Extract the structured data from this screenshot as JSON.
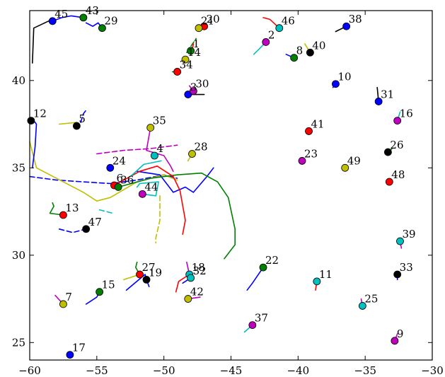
{
  "chart_data": {
    "type": "scatter",
    "title": "",
    "xlabel": "",
    "ylabel": "",
    "xlim": [
      -60,
      -30
    ],
    "ylim": [
      24,
      44
    ],
    "xticks": [
      -60,
      -55,
      -50,
      -45,
      -40,
      -35,
      -30
    ],
    "yticks": [
      25,
      30,
      35,
      40
    ],
    "xtick_labels": [
      "−60",
      "−55",
      "−50",
      "−45",
      "−40",
      "−35",
      "−30"
    ],
    "ytick_labels": [
      "25",
      "30",
      "35",
      "40"
    ],
    "grid": false,
    "legend": "none",
    "colors": {
      "b": "#0000ff",
      "g": "#008000",
      "r": "#ff0000",
      "c": "#00bfbf",
      "m": "#bf00bf",
      "y": "#bfbf00",
      "k": "#000000"
    },
    "points": [
      {
        "id": "1",
        "x": -48.0,
        "y": 41.7,
        "color": "g"
      },
      {
        "id": "2",
        "x": -42.4,
        "y": 42.2,
        "color": "m"
      },
      {
        "id": "3",
        "x": -48.2,
        "y": 39.2,
        "color": "b"
      },
      {
        "id": "4",
        "x": -50.7,
        "y": 35.7,
        "color": "c"
      },
      {
        "id": "5",
        "x": -56.5,
        "y": 37.4,
        "color": "k"
      },
      {
        "id": "6",
        "x": -53.7,
        "y": 34.0,
        "color": "r"
      },
      {
        "id": "7",
        "x": -57.5,
        "y": 27.2,
        "color": "y"
      },
      {
        "id": "8",
        "x": -40.3,
        "y": 41.3,
        "color": "g"
      },
      {
        "id": "9",
        "x": -32.8,
        "y": 25.1,
        "color": "m"
      },
      {
        "id": "10",
        "x": -37.2,
        "y": 39.8,
        "color": "b"
      },
      {
        "id": "11",
        "x": -38.6,
        "y": 28.5,
        "color": "c"
      },
      {
        "id": "12",
        "x": -59.9,
        "y": 37.7,
        "color": "k"
      },
      {
        "id": "13",
        "x": -57.5,
        "y": 32.3,
        "color": "r"
      },
      {
        "id": "14",
        "x": -48.4,
        "y": 41.2,
        "color": "y"
      },
      {
        "id": "15",
        "x": -54.8,
        "y": 27.9,
        "color": "g"
      },
      {
        "id": "16",
        "x": -32.6,
        "y": 37.7,
        "color": "m"
      },
      {
        "id": "17",
        "x": -57.0,
        "y": 24.3,
        "color": "b"
      },
      {
        "id": "18",
        "x": -48.1,
        "y": 28.9,
        "color": "c"
      },
      {
        "id": "19",
        "x": -51.3,
        "y": 28.6,
        "color": "k"
      },
      {
        "id": "20",
        "x": -47.0,
        "y": 43.1,
        "color": "r"
      },
      {
        "id": "21",
        "x": -47.4,
        "y": 43.0,
        "color": "y"
      },
      {
        "id": "22",
        "x": -42.6,
        "y": 29.3,
        "color": "g"
      },
      {
        "id": "23",
        "x": -39.7,
        "y": 35.4,
        "color": "m"
      },
      {
        "id": "24",
        "x": -54.0,
        "y": 35.0,
        "color": "b"
      },
      {
        "id": "25",
        "x": -35.2,
        "y": 27.1,
        "color": "c"
      },
      {
        "id": "26",
        "x": -33.3,
        "y": 35.9,
        "color": "k"
      },
      {
        "id": "27",
        "x": -51.8,
        "y": 28.9,
        "color": "r"
      },
      {
        "id": "28",
        "x": -47.9,
        "y": 35.8,
        "color": "y"
      },
      {
        "id": "29",
        "x": -54.6,
        "y": 43.0,
        "color": "g"
      },
      {
        "id": "30",
        "x": -47.8,
        "y": 39.4,
        "color": "m"
      },
      {
        "id": "31",
        "x": -34.0,
        "y": 38.8,
        "color": "b"
      },
      {
        "id": "32",
        "x": -48.0,
        "y": 28.7,
        "color": "c"
      },
      {
        "id": "33",
        "x": -32.6,
        "y": 28.9,
        "color": "k"
      },
      {
        "id": "34",
        "x": -49.0,
        "y": 40.5,
        "color": "r"
      },
      {
        "id": "35",
        "x": -51.0,
        "y": 37.3,
        "color": "y"
      },
      {
        "id": "36",
        "x": -53.4,
        "y": 33.9,
        "color": "g"
      },
      {
        "id": "37",
        "x": -43.4,
        "y": 26.0,
        "color": "m"
      },
      {
        "id": "38",
        "x": -36.4,
        "y": 43.1,
        "color": "b"
      },
      {
        "id": "39",
        "x": -32.4,
        "y": 30.8,
        "color": "c"
      },
      {
        "id": "40",
        "x": -39.1,
        "y": 41.6,
        "color": "k"
      },
      {
        "id": "41",
        "x": -39.2,
        "y": 37.1,
        "color": "r"
      },
      {
        "id": "42",
        "x": -48.2,
        "y": 27.5,
        "color": "y"
      },
      {
        "id": "43",
        "x": -56.0,
        "y": 43.6,
        "color": "g"
      },
      {
        "id": "44",
        "x": -51.6,
        "y": 33.5,
        "color": "m"
      },
      {
        "id": "45",
        "x": -58.3,
        "y": 43.4,
        "color": "b"
      },
      {
        "id": "46",
        "x": -41.4,
        "y": 43.0,
        "color": "c"
      },
      {
        "id": "47",
        "x": -55.8,
        "y": 31.5,
        "color": "k"
      },
      {
        "id": "48",
        "x": -33.2,
        "y": 34.2,
        "color": "r"
      },
      {
        "id": "49",
        "x": -36.5,
        "y": 35.0,
        "color": "y"
      }
    ],
    "trails": [
      {
        "color": "b",
        "dashed": true,
        "points": [
          [
            -60,
            34.5
          ],
          [
            -58,
            34.3
          ],
          [
            -56,
            34.2
          ],
          [
            -54,
            34.1
          ],
          [
            -52,
            34.3
          ],
          [
            -50,
            34.6
          ],
          [
            -49,
            34.4
          ]
        ]
      },
      {
        "color": "y",
        "dashed": false,
        "points": [
          [
            -60,
            36.5
          ],
          [
            -59.5,
            35
          ],
          [
            -58,
            34.4
          ],
          [
            -56,
            33.6
          ],
          [
            -55,
            33.1
          ],
          [
            -54,
            33.3
          ],
          [
            -52,
            34.2
          ],
          [
            -50,
            34.6
          ],
          [
            -49,
            34.3
          ]
        ]
      },
      {
        "color": "b",
        "dashed": false,
        "points": [
          [
            -59.8,
            37.8
          ],
          [
            -59.5,
            37.5
          ],
          [
            -59.6,
            36.2
          ],
          [
            -59.8,
            35
          ]
        ]
      },
      {
        "color": "b",
        "dashed": false,
        "points": [
          [
            -52,
            34.8
          ],
          [
            -50.3,
            34.6
          ],
          [
            -49.3,
            33.6
          ],
          [
            -48.4,
            33.9
          ],
          [
            -47.8,
            33.6
          ],
          [
            -46.8,
            34.5
          ],
          [
            -46.3,
            35
          ]
        ]
      },
      {
        "color": "g",
        "dashed": false,
        "points": [
          [
            -53.4,
            33.9
          ],
          [
            -51,
            34.4
          ],
          [
            -49,
            34.6
          ],
          [
            -47.2,
            34.7
          ],
          [
            -46,
            34.2
          ],
          [
            -45.2,
            33.3
          ],
          [
            -44.7,
            31.5
          ],
          [
            -44.7,
            30.6
          ],
          [
            -45.5,
            29.8
          ]
        ]
      },
      {
        "color": "r",
        "dashed": false,
        "points": [
          [
            -53.7,
            34.0
          ],
          [
            -51.8,
            34.8
          ],
          [
            -50.5,
            35.1
          ],
          [
            -49.3,
            34.5
          ],
          [
            -48.8,
            33.7
          ],
          [
            -48.4,
            32.0
          ],
          [
            -48.6,
            31.2
          ]
        ]
      },
      {
        "color": "m",
        "dashed": true,
        "points": [
          [
            -55,
            35.8
          ],
          [
            -53,
            36.0
          ],
          [
            -51,
            36.1
          ],
          [
            -49,
            36.3
          ]
        ]
      },
      {
        "color": "y",
        "dashed": true,
        "points": [
          [
            -50.3,
            33.4
          ],
          [
            -50.3,
            32.0
          ],
          [
            -50.6,
            31.0
          ],
          [
            -50.6,
            30.7
          ]
        ]
      },
      {
        "color": "c",
        "dashed": false,
        "points": [
          [
            -51.6,
            33.5
          ],
          [
            -50.6,
            33.4
          ],
          [
            -50.4,
            34.2
          ],
          [
            -51.8,
            34.1
          ],
          [
            -52,
            33.9
          ]
        ]
      },
      {
        "color": "c",
        "dashed": false,
        "points": [
          [
            -52.5,
            34.5
          ],
          [
            -51.5,
            35.2
          ],
          [
            -50.2,
            35.4
          ]
        ]
      },
      {
        "color": "b",
        "dashed": true,
        "points": [
          [
            -57.8,
            31.5
          ],
          [
            -56.8,
            31.3
          ],
          [
            -55.8,
            31.5
          ]
        ]
      },
      {
        "color": "c",
        "dashed": true,
        "points": [
          [
            -54.8,
            32.6
          ],
          [
            -53.8,
            32.4
          ]
        ]
      },
      {
        "color": "g",
        "dashed": false,
        "points": [
          [
            -57.5,
            32.3
          ],
          [
            -58.5,
            32.4
          ],
          [
            -58.2,
            32.8
          ],
          [
            -58.3,
            33.0
          ]
        ]
      },
      {
        "color": "y",
        "dashed": false,
        "points": [
          [
            -57.8,
            37.5
          ],
          [
            -56.5,
            37.6
          ],
          [
            -56.5,
            37.4
          ]
        ]
      },
      {
        "color": "b",
        "dashed": true,
        "points": [
          [
            -56.2,
            37.6
          ],
          [
            -56,
            38.1
          ],
          [
            -55.8,
            38.3
          ]
        ]
      },
      {
        "color": "k",
        "dashed": false,
        "points": [
          [
            -59.8,
            41.0
          ],
          [
            -59.7,
            43.0
          ],
          [
            -58.6,
            43.4
          ]
        ]
      },
      {
        "color": "b",
        "dashed": false,
        "points": [
          [
            -58.3,
            43.4
          ],
          [
            -57.6,
            43.6
          ],
          [
            -56.9,
            43.7
          ],
          [
            -56.0,
            43.6
          ]
        ]
      },
      {
        "color": "b",
        "dashed": false,
        "points": [
          [
            -55.8,
            43.3
          ],
          [
            -55.3,
            43.1
          ],
          [
            -54.9,
            43.3
          ],
          [
            -54.6,
            43.0
          ]
        ]
      },
      {
        "color": "g",
        "dashed": true,
        "points": [
          [
            -48.3,
            41.6
          ],
          [
            -47.6,
            42.4
          ]
        ]
      },
      {
        "color": "r",
        "dashed": false,
        "points": [
          [
            -47.9,
            41.7
          ],
          [
            -47.8,
            42.1
          ]
        ]
      },
      {
        "color": "c",
        "dashed": false,
        "points": [
          [
            -42.4,
            42.2
          ],
          [
            -42.9,
            41.8
          ],
          [
            -43.3,
            41.5
          ]
        ]
      },
      {
        "color": "r",
        "dashed": false,
        "points": [
          [
            -41.4,
            43.0
          ],
          [
            -42.1,
            43.5
          ],
          [
            -42.6,
            43.6
          ]
        ]
      },
      {
        "color": "b",
        "dashed": false,
        "points": [
          [
            -40.3,
            41.3
          ],
          [
            -40.9,
            41.5
          ]
        ]
      },
      {
        "color": "y",
        "dashed": false,
        "points": [
          [
            -39.1,
            41.6
          ],
          [
            -39.5,
            42.1
          ]
        ]
      },
      {
        "color": "k",
        "dashed": false,
        "points": [
          [
            -36.4,
            43.1
          ],
          [
            -37.2,
            42.8
          ]
        ]
      },
      {
        "color": "b",
        "dashed": false,
        "points": [
          [
            -37.2,
            39.8
          ],
          [
            -37.4,
            39.6
          ]
        ]
      },
      {
        "color": "k",
        "dashed": false,
        "points": [
          [
            -34.0,
            38.8
          ],
          [
            -34.1,
            39.6
          ]
        ]
      },
      {
        "color": "k",
        "dashed": false,
        "points": [
          [
            -48.2,
            39.2
          ],
          [
            -47,
            39.2
          ]
        ]
      },
      {
        "color": "m",
        "dashed": false,
        "points": [
          [
            -47.8,
            39.4
          ],
          [
            -48.1,
            39.7
          ]
        ]
      },
      {
        "color": "g",
        "dashed": true,
        "points": [
          [
            -49,
            40.5
          ],
          [
            -49.5,
            40.5
          ]
        ]
      },
      {
        "color": "m",
        "dashed": false,
        "points": [
          [
            -51,
            37.3
          ],
          [
            -51.3,
            36.0
          ],
          [
            -50,
            35.7
          ],
          [
            -49.5,
            35.1
          ],
          [
            -49.3,
            34.8
          ]
        ]
      },
      {
        "color": "y",
        "dashed": false,
        "points": [
          [
            -47.9,
            35.8
          ],
          [
            -48.2,
            35.4
          ]
        ]
      },
      {
        "color": "b",
        "dashed": false,
        "points": [
          [
            -52.8,
            28.0
          ],
          [
            -51.4,
            28.9
          ],
          [
            -51.3,
            28.6
          ],
          [
            -51.1,
            28.2
          ]
        ]
      },
      {
        "color": "y",
        "dashed": false,
        "points": [
          [
            -53.0,
            28.6
          ],
          [
            -51.8,
            28.9
          ]
        ]
      },
      {
        "color": "g",
        "dashed": false,
        "points": [
          [
            -51.8,
            28.9
          ],
          [
            -52.1,
            29.3
          ],
          [
            -52.0,
            29.6
          ]
        ]
      },
      {
        "color": "b",
        "dashed": false,
        "points": [
          [
            -55.8,
            27.2
          ],
          [
            -55,
            27.6
          ],
          [
            -54.8,
            27.9
          ]
        ]
      },
      {
        "color": "m",
        "dashed": false,
        "points": [
          [
            -57.5,
            27.2
          ],
          [
            -58.1,
            27.7
          ]
        ]
      },
      {
        "color": "r",
        "dashed": false,
        "points": [
          [
            -48.1,
            28.9
          ],
          [
            -48.9,
            28.5
          ],
          [
            -49.1,
            27.9
          ]
        ]
      },
      {
        "color": "b",
        "dashed": false,
        "points": [
          [
            -48.0,
            28.7
          ],
          [
            -48.6,
            28.4
          ]
        ]
      },
      {
        "color": "m",
        "dashed": false,
        "points": [
          [
            -48.1,
            28.9
          ],
          [
            -48.3,
            29.6
          ]
        ]
      },
      {
        "color": "m",
        "dashed": false,
        "points": [
          [
            -48.2,
            27.5
          ],
          [
            -47.3,
            27.6
          ]
        ]
      },
      {
        "color": "b",
        "dashed": false,
        "points": [
          [
            -42.6,
            29.3
          ],
          [
            -43.4,
            28.4
          ],
          [
            -43.8,
            28.0
          ]
        ]
      },
      {
        "color": "c",
        "dashed": false,
        "points": [
          [
            -43.4,
            26.0
          ],
          [
            -44.0,
            25.6
          ]
        ]
      },
      {
        "color": "r",
        "dashed": false,
        "points": [
          [
            -38.6,
            28.5
          ],
          [
            -38.7,
            28.0
          ]
        ]
      },
      {
        "color": "m",
        "dashed": false,
        "points": [
          [
            -35.2,
            27.1
          ],
          [
            -35.3,
            27.5
          ]
        ]
      },
      {
        "color": "m",
        "dashed": false,
        "points": [
          [
            -32.8,
            25.1
          ],
          [
            -32.6,
            25.5
          ]
        ]
      },
      {
        "color": "m",
        "dashed": false,
        "points": [
          [
            -32.4,
            30.8
          ],
          [
            -32.3,
            30.4
          ]
        ]
      },
      {
        "color": "b",
        "dashed": false,
        "points": [
          [
            -32.6,
            28.9
          ],
          [
            -32.6,
            28.6
          ]
        ]
      },
      {
        "color": "c",
        "dashed": false,
        "points": [
          [
            -32.6,
            37.7
          ],
          [
            -32.4,
            38.2
          ]
        ]
      },
      {
        "color": "g",
        "dashed": false,
        "points": [
          [
            -33.3,
            35.9
          ],
          [
            -33.0,
            36.1
          ]
        ]
      }
    ]
  }
}
